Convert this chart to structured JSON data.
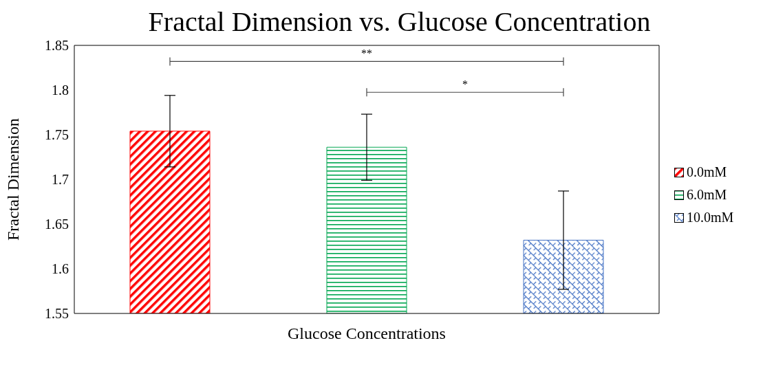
{
  "chart_data": {
    "type": "bar",
    "title": "Fractal Dimension vs. Glucose Concentration",
    "xlabel": "Glucose Concentrations",
    "ylabel": "Fractal Dimension",
    "categories": [
      null
    ],
    "series": [
      {
        "name": "0.0mM",
        "color": "#ff0000",
        "values": [
          1.754
        ],
        "errors": [
          0.04
        ]
      },
      {
        "name": "6.0mM",
        "color": "#00a650",
        "values": [
          1.736
        ],
        "errors": [
          0.037
        ]
      },
      {
        "name": "10.0mM",
        "color": "#4472c4",
        "values": [
          1.632
        ],
        "errors": [
          0.055
        ]
      }
    ],
    "ylim": [
      1.55,
      1.85
    ],
    "yticks": [
      1.55,
      1.6,
      1.65,
      1.7,
      1.75,
      1.8,
      1.85
    ],
    "legend": "right",
    "annotations": [
      "**",
      "*"
    ]
  }
}
